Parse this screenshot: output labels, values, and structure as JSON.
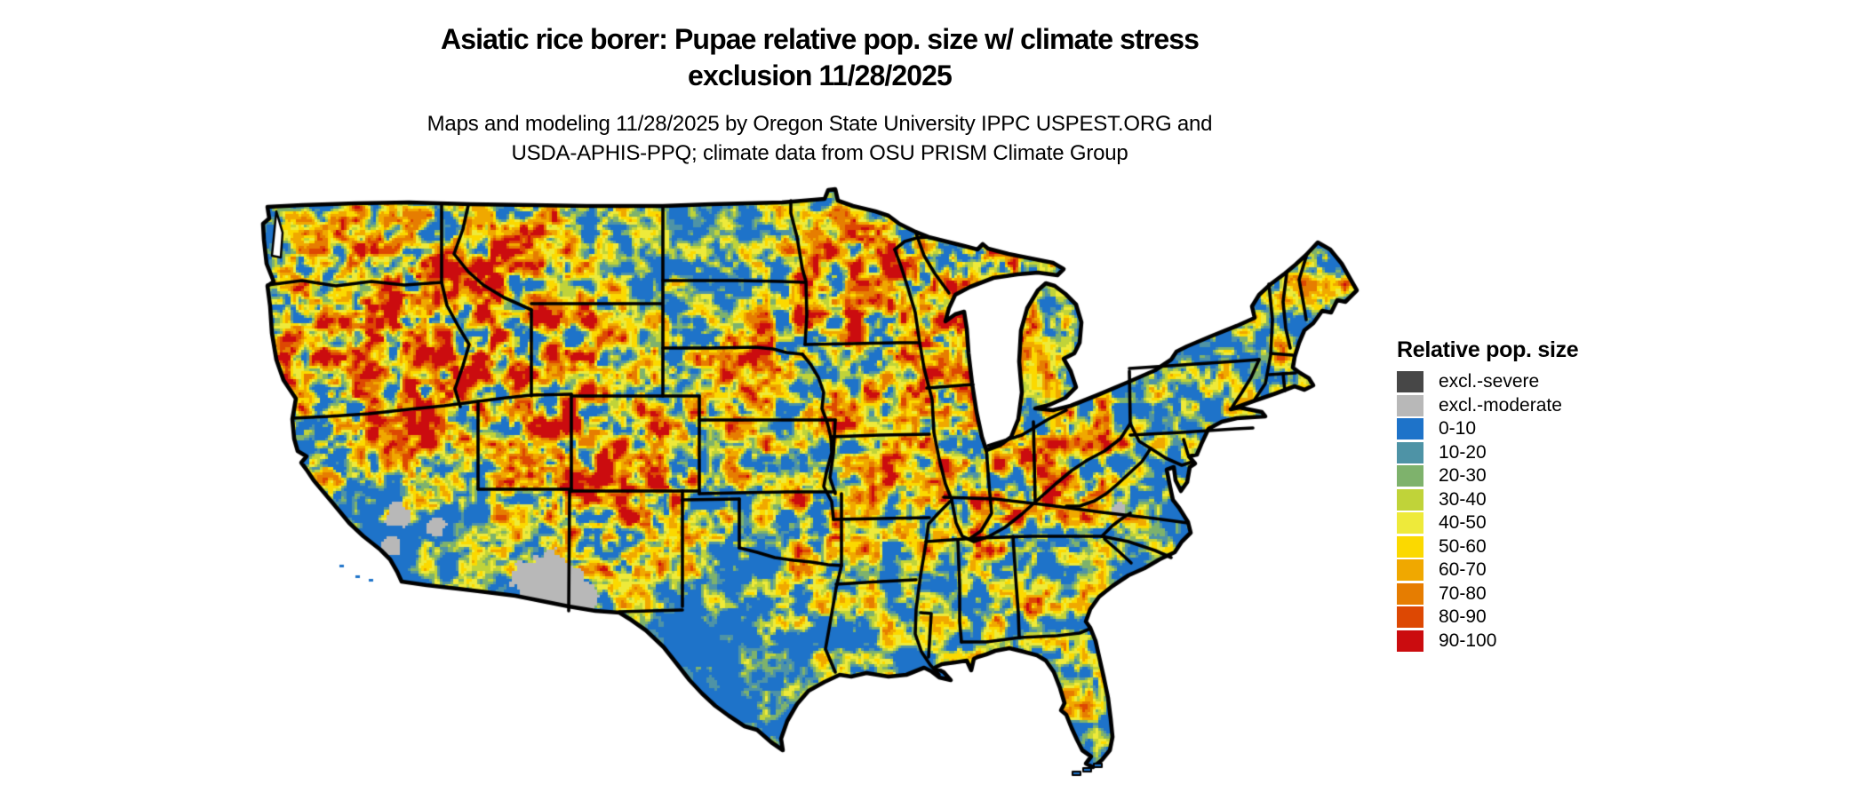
{
  "header": {
    "title_line1": "Asiatic rice borer: Pupae relative pop. size w/ climate stress",
    "title_line2": "exclusion 11/28/2025",
    "subtitle_line1": "Maps and modeling 11/28/2025 by Oregon State University IPPC USPEST.ORG and",
    "subtitle_line2": "USDA-APHIS-PPQ; climate data from OSU PRISM Climate Group"
  },
  "map": {
    "region": "Contiguous United States",
    "type": "raster-risk-map",
    "land_base_color": "#1e73c9",
    "state_border_color": "#000000",
    "water_color": "#ffffff"
  },
  "legend": {
    "title": "Relative pop. size",
    "items": [
      {
        "label": "excl.-severe",
        "color": "#474747"
      },
      {
        "label": "excl.-moderate",
        "color": "#b8b8b8"
      },
      {
        "label": "0-10",
        "color": "#1e73c9"
      },
      {
        "label": "10-20",
        "color": "#4e93a6"
      },
      {
        "label": "20-30",
        "color": "#7eb26c"
      },
      {
        "label": "30-40",
        "color": "#c0d339"
      },
      {
        "label": "40-50",
        "color": "#eeea3a"
      },
      {
        "label": "50-60",
        "color": "#fbd900"
      },
      {
        "label": "60-70",
        "color": "#f0a800"
      },
      {
        "label": "70-80",
        "color": "#e67d01"
      },
      {
        "label": "80-90",
        "color": "#dd4803"
      },
      {
        "label": "90-100",
        "color": "#cb0c0f"
      }
    ]
  }
}
